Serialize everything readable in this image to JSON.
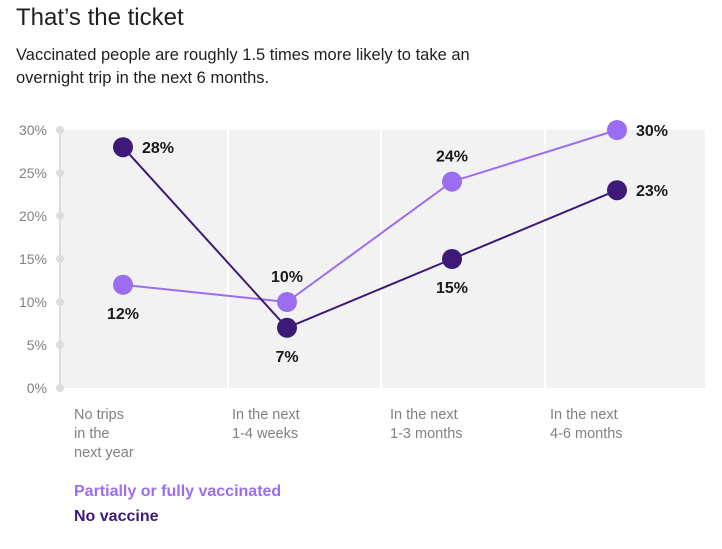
{
  "title": "That’s the ticket",
  "subtitle": "Vaccinated people are roughly 1.5 times more likely to take an overnight trip in the next 6 months.",
  "colors": {
    "vaccinated": "#9b6df0",
    "no_vaccine": "#3d1a78",
    "grid": "#e6e6e6",
    "plot_bg": "#f2f2f2",
    "axis_text": "#808080"
  },
  "chart_data": {
    "type": "line",
    "categories": [
      [
        "No trips",
        "in the",
        "next year"
      ],
      [
        "In the next",
        "1-4 weeks"
      ],
      [
        "In the next",
        "1-3 months"
      ],
      [
        "In the next",
        "4-6 months"
      ]
    ],
    "ylim": [
      0,
      30
    ],
    "yticks": [
      "0%",
      "5%",
      "10%",
      "15%",
      "20%",
      "25%",
      "30%"
    ],
    "series": [
      {
        "name": "Partially or fully vaccinated",
        "values": [
          12,
          10,
          24,
          30
        ],
        "labels": [
          "12%",
          "10%",
          "24%",
          "30%"
        ],
        "label_pos": [
          "below",
          "above",
          "above",
          "right"
        ]
      },
      {
        "name": "No vaccine",
        "values": [
          28,
          7,
          15,
          23
        ],
        "labels": [
          "28%",
          "7%",
          "15%",
          "23%"
        ],
        "label_pos": [
          "right",
          "below",
          "below",
          "right"
        ]
      }
    ]
  }
}
